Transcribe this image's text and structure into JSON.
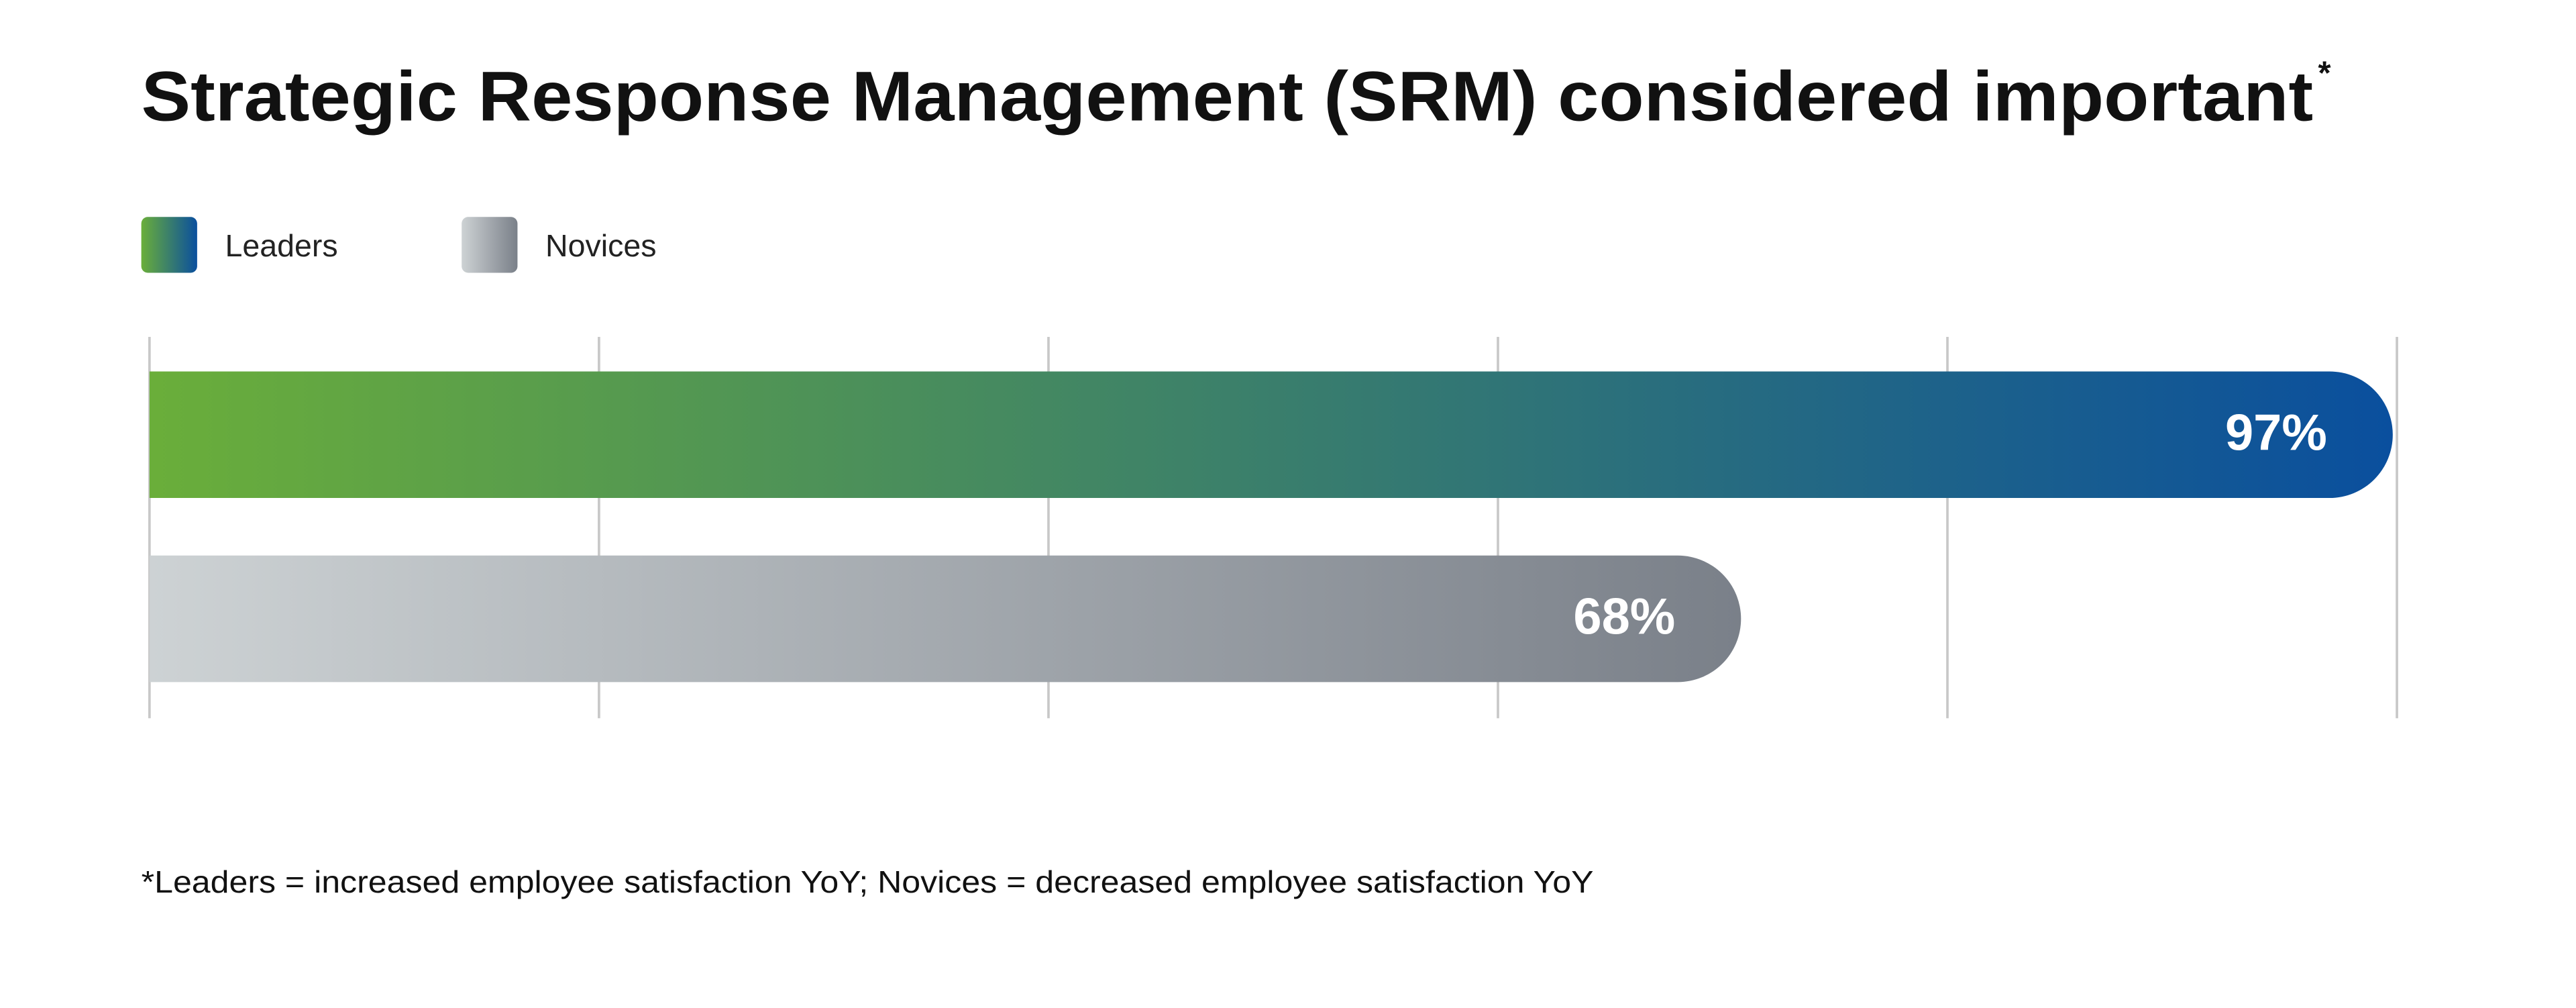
{
  "chart_data": {
    "type": "hbar",
    "title": "Strategic Response Management (SRM) considered important",
    "title_mark": "*",
    "footnote": "*Leaders = increased employee satisfaction YoY;  Novices = decreased employee satisfaction YoY",
    "categories": [
      null
    ],
    "series": [
      {
        "name": "Leaders",
        "color": [
          "#6aae3a",
          "#0a4f9e"
        ],
        "values": [
          97
        ],
        "value_labels": [
          "97%"
        ]
      },
      {
        "name": "Novices",
        "color": [
          "#cdd2d4",
          "#7a8089"
        ],
        "values": [
          68
        ],
        "value_labels": [
          "68%"
        ]
      }
    ],
    "xlim": [
      0,
      100
    ],
    "xticks": [
      0,
      20,
      40,
      60,
      80,
      100
    ],
    "grid": true,
    "legend": "top-left"
  }
}
